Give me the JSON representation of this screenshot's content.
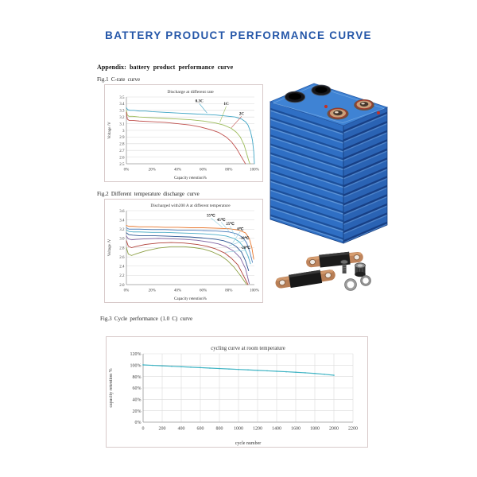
{
  "page": {
    "title": "BATTERY PRODUCT PERFORMANCE CURVE",
    "appendix_heading": "Appendix: battery product performance curve",
    "fig1_caption": "Fig.1 C-rate curve",
    "fig2_caption": "Fig.2 Different temperature discharge curve",
    "fig3_caption": "Fig.3 Cycle performance (1.0 C) curve"
  },
  "colors": {
    "title_blue": "#2456A8",
    "chart_border": "#D8CACA",
    "grid": "#D9D9D9",
    "axis": "#999999",
    "tick_text": "#404040",
    "battery_blue": "#2F6FC4",
    "copper": "#BF845C",
    "cycle_line": "#3FB4C4"
  },
  "chart_data": [
    {
      "id": "fig1",
      "type": "line",
      "title": "Discharge at different rate",
      "xlabel": "Capacity retention%",
      "ylabel": "Voltage /V",
      "xlim": [
        0,
        100
      ],
      "ylim": [
        2.5,
        3.5
      ],
      "grid": "h",
      "legend": "inline-annotations",
      "xticks": [
        {
          "v": 0,
          "label": "0%"
        },
        {
          "v": 20,
          "label": "20%"
        },
        {
          "v": 40,
          "label": "40%"
        },
        {
          "v": 60,
          "label": "60%"
        },
        {
          "v": 80,
          "label": "80%"
        },
        {
          "v": 100,
          "label": "100%"
        }
      ],
      "yticks": [
        {
          "v": 3.5,
          "label": "3.5"
        },
        {
          "v": 3.4,
          "label": "3.4"
        },
        {
          "v": 3.3,
          "label": "3.3"
        },
        {
          "v": 3.2,
          "label": "3.2"
        },
        {
          "v": 3.1,
          "label": "3.1"
        },
        {
          "v": 3.0,
          "label": "3"
        },
        {
          "v": 2.9,
          "label": "2.9"
        },
        {
          "v": 2.8,
          "label": "2.8"
        },
        {
          "v": 2.7,
          "label": "2.7"
        },
        {
          "v": 2.6,
          "label": "2.6"
        },
        {
          "v": 2.5,
          "label": "2.5"
        }
      ],
      "series": [
        {
          "name": "0.3C",
          "color": "#3FA5C5",
          "x": [
            0,
            1,
            3,
            6,
            10,
            15,
            20,
            30,
            40,
            50,
            60,
            70,
            80,
            85,
            90,
            93,
            95,
            97,
            98.5,
            99.5,
            100
          ],
          "y": [
            3.34,
            3.31,
            3.3,
            3.3,
            3.29,
            3.29,
            3.28,
            3.27,
            3.26,
            3.25,
            3.24,
            3.23,
            3.21,
            3.2,
            3.17,
            3.13,
            3.08,
            2.98,
            2.85,
            2.68,
            2.5
          ]
        },
        {
          "name": "1C",
          "color": "#9BBB59",
          "x": [
            0,
            0.7,
            2,
            5,
            10,
            20,
            30,
            40,
            50,
            60,
            70,
            76,
            82,
            86,
            89,
            92,
            94,
            95.5,
            96.5
          ],
          "y": [
            3.3,
            3.23,
            3.21,
            3.21,
            3.2,
            3.19,
            3.18,
            3.17,
            3.16,
            3.14,
            3.11,
            3.08,
            3.03,
            2.97,
            2.9,
            2.78,
            2.65,
            2.55,
            2.5
          ]
        },
        {
          "name": "2C",
          "color": "#C0504D",
          "x": [
            0,
            0.7,
            2,
            5,
            10,
            20,
            30,
            40,
            50,
            58,
            66,
            72,
            78,
            82,
            86,
            89,
            91.5,
            93
          ],
          "y": [
            3.27,
            3.17,
            3.15,
            3.15,
            3.14,
            3.13,
            3.12,
            3.1,
            3.08,
            3.05,
            3.01,
            2.97,
            2.9,
            2.83,
            2.73,
            2.63,
            2.55,
            2.5
          ]
        }
      ],
      "annotations": [
        {
          "text": "0.3C",
          "x": 57,
          "y": 3.42,
          "tx": 63,
          "ty": 3.26,
          "leader": "#3FA5C5"
        },
        {
          "text": "1C",
          "x": 78,
          "y": 3.38,
          "tx": 73,
          "ty": 3.12,
          "leader": "#9BBB59"
        },
        {
          "text": "2C",
          "x": 90,
          "y": 3.23,
          "tx": 82,
          "ty": 3.04,
          "leader": "#C0504D"
        }
      ]
    },
    {
      "id": "fig2",
      "type": "line",
      "title": "Discharged with200 A at different temperature",
      "xlabel": "Capacity retention%",
      "ylabel": "Voltage /V",
      "xlim": [
        0,
        100
      ],
      "ylim": [
        2.0,
        3.6
      ],
      "grid": "h",
      "legend": "inline-annotations",
      "xticks": [
        {
          "v": 0,
          "label": "0%"
        },
        {
          "v": 20,
          "label": "20%"
        },
        {
          "v": 40,
          "label": "40%"
        },
        {
          "v": 60,
          "label": "60%"
        },
        {
          "v": 80,
          "label": "80%"
        },
        {
          "v": 100,
          "label": "100%"
        }
      ],
      "yticks": [
        {
          "v": 3.6,
          "label": "3.6"
        },
        {
          "v": 3.4,
          "label": "3.4"
        },
        {
          "v": 3.2,
          "label": "3.2"
        },
        {
          "v": 3.0,
          "label": "3.0"
        },
        {
          "v": 2.8,
          "label": "2.8"
        },
        {
          "v": 2.6,
          "label": "2.6"
        },
        {
          "v": 2.4,
          "label": "2.4"
        },
        {
          "v": 2.2,
          "label": "2.2"
        },
        {
          "v": 2.0,
          "label": "2.0"
        }
      ],
      "series": [
        {
          "name": "55℃",
          "color": "#E8762C",
          "x": [
            0,
            2,
            5,
            10,
            20,
            30,
            40,
            50,
            60,
            70,
            80,
            88,
            93,
            96,
            98,
            99.5
          ],
          "y": [
            3.28,
            3.26,
            3.26,
            3.25,
            3.25,
            3.24,
            3.24,
            3.23,
            3.23,
            3.22,
            3.21,
            3.18,
            3.12,
            3.0,
            2.8,
            2.55
          ]
        },
        {
          "name": "45℃",
          "color": "#4F81BD",
          "x": [
            0,
            2,
            5,
            10,
            20,
            30,
            40,
            50,
            60,
            70,
            80,
            86,
            91,
            94,
            96.5,
            98.5
          ],
          "y": [
            3.23,
            3.2,
            3.2,
            3.2,
            3.19,
            3.19,
            3.18,
            3.18,
            3.17,
            3.16,
            3.14,
            3.1,
            3.02,
            2.9,
            2.7,
            2.48
          ]
        },
        {
          "name": "25℃",
          "color": "#4BACC6",
          "x": [
            0,
            2,
            5,
            10,
            20,
            30,
            40,
            50,
            60,
            70,
            78,
            84,
            88,
            92,
            95,
            97
          ],
          "y": [
            3.18,
            3.15,
            3.14,
            3.14,
            3.13,
            3.13,
            3.12,
            3.11,
            3.1,
            3.08,
            3.05,
            3.0,
            2.93,
            2.8,
            2.62,
            2.45
          ]
        },
        {
          "name": "0℃",
          "color": "#2B5592",
          "x": [
            0,
            2,
            5,
            10,
            20,
            30,
            40,
            50,
            60,
            70,
            76,
            82,
            86,
            90,
            93,
            95.5
          ],
          "y": [
            3.12,
            3.08,
            3.07,
            3.06,
            3.06,
            3.05,
            3.04,
            3.03,
            3.01,
            2.98,
            2.95,
            2.89,
            2.82,
            2.7,
            2.52,
            2.3
          ]
        },
        {
          "name": "-10℃",
          "color": "#8064A2",
          "x": [
            0,
            1.5,
            4,
            8,
            15,
            25,
            35,
            45,
            55,
            65,
            72,
            78,
            84,
            89,
            93,
            96
          ],
          "y": [
            3.05,
            2.99,
            2.97,
            2.98,
            2.99,
            3.0,
            2.99,
            2.98,
            2.96,
            2.92,
            2.88,
            2.82,
            2.72,
            2.58,
            2.35,
            2.02
          ]
        },
        {
          "name": "-20℃",
          "color": "#B04038",
          "x": [
            0,
            1.5,
            4,
            8,
            15,
            25,
            35,
            45,
            55,
            63,
            70,
            77,
            82,
            87,
            91,
            95
          ],
          "y": [
            2.95,
            2.83,
            2.8,
            2.83,
            2.87,
            2.9,
            2.91,
            2.9,
            2.87,
            2.83,
            2.77,
            2.68,
            2.57,
            2.43,
            2.22,
            2.0
          ]
        },
        {
          "name": "",
          "color": "#8DA045",
          "x": [
            0,
            1.5,
            4,
            8,
            15,
            25,
            35,
            45,
            53,
            60,
            67,
            74,
            79,
            84,
            89,
            94
          ],
          "y": [
            2.8,
            2.66,
            2.63,
            2.67,
            2.73,
            2.79,
            2.82,
            2.82,
            2.8,
            2.77,
            2.71,
            2.62,
            2.52,
            2.38,
            2.2,
            2.0
          ]
        }
      ],
      "annotations": [
        {
          "text": "55℃",
          "x": 66,
          "y": 3.47,
          "tx": 75,
          "ty": 3.24,
          "leader": "#8FCFDE"
        },
        {
          "text": "45℃",
          "x": 74,
          "y": 3.38,
          "tx": 80,
          "ty": 3.16,
          "leader": "#8FCFDE"
        },
        {
          "text": "25℃",
          "x": 81,
          "y": 3.29,
          "tx": 85,
          "ty": 3.05,
          "leader": "#8FCFDE"
        },
        {
          "text": "0℃",
          "x": 89,
          "y": 3.18,
          "tx": 83,
          "ty": 2.9,
          "leader": "#8FCFDE"
        },
        {
          "text": "-10℃",
          "x": 92,
          "y": 2.98,
          "tx": 80,
          "ty": 2.84,
          "leader": "#8FCFDE"
        },
        {
          "text": "-20℃",
          "x": 93,
          "y": 2.77,
          "tx": 77,
          "ty": 2.7,
          "leader": "#8FCFDE"
        }
      ]
    },
    {
      "id": "fig3",
      "type": "line",
      "title": "cycling curve at room temperature",
      "xlabel": "cycle number",
      "ylabel": "capacity retention %",
      "xlim": [
        0,
        2200
      ],
      "ylim": [
        0,
        120
      ],
      "grid": "both",
      "markers": true,
      "xticks": [
        {
          "v": 0,
          "label": "0"
        },
        {
          "v": 200,
          "label": "200"
        },
        {
          "v": 400,
          "label": "400"
        },
        {
          "v": 600,
          "label": "600"
        },
        {
          "v": 800,
          "label": "800"
        },
        {
          "v": 1000,
          "label": "1000"
        },
        {
          "v": 1200,
          "label": "1200"
        },
        {
          "v": 1400,
          "label": "1400"
        },
        {
          "v": 1600,
          "label": "1600"
        },
        {
          "v": 1800,
          "label": "1800"
        },
        {
          "v": 2000,
          "label": "2000"
        },
        {
          "v": 2200,
          "label": "2200"
        }
      ],
      "yticks": [
        {
          "v": 120,
          "label": "120%"
        },
        {
          "v": 100,
          "label": "100%"
        },
        {
          "v": 80,
          "label": "80%"
        },
        {
          "v": 60,
          "label": "60%"
        },
        {
          "v": 40,
          "label": "40%"
        },
        {
          "v": 20,
          "label": "20%"
        },
        {
          "v": 0,
          "label": "0%"
        }
      ],
      "series": [
        {
          "name": "capacity retention",
          "color": "#3FB4C4",
          "x": [
            0,
            100,
            200,
            300,
            400,
            500,
            600,
            700,
            800,
            900,
            1000,
            1100,
            1200,
            1300,
            1400,
            1500,
            1600,
            1700,
            1800,
            1900,
            2000
          ],
          "y": [
            100.5,
            99.7,
            98.9,
            98.1,
            97.3,
            96.5,
            95.7,
            94.9,
            94.1,
            93.3,
            92.5,
            91.7,
            90.9,
            90.1,
            89.3,
            88.5,
            87.6,
            86.6,
            85.5,
            84.0,
            82.3
          ]
        }
      ],
      "annotations": []
    }
  ]
}
